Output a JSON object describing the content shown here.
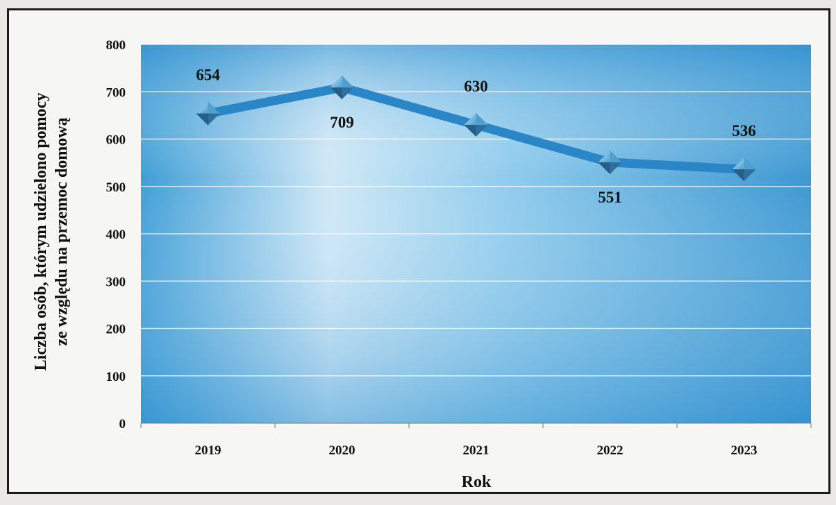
{
  "chart_data": {
    "type": "line",
    "xlabel": "Rok",
    "ylabel_lines": [
      "Liczba osób, którym udzielono pomocy",
      "ze względu na przemoc domową"
    ],
    "categories": [
      "2019",
      "2020",
      "2021",
      "2022",
      "2023"
    ],
    "values": [
      654,
      709,
      630,
      551,
      536
    ],
    "data_labels": [
      "654",
      "709",
      "630",
      "551",
      "536"
    ],
    "yticks": [
      "0",
      "100",
      "200",
      "300",
      "400",
      "500",
      "600",
      "700",
      "800"
    ],
    "ylim": [
      0,
      800
    ],
    "grid": true,
    "legend": "none",
    "colors": {
      "line": "#2a86c6",
      "marker": "#3d8fc4",
      "plot_bg": "#4aa3d6"
    }
  }
}
